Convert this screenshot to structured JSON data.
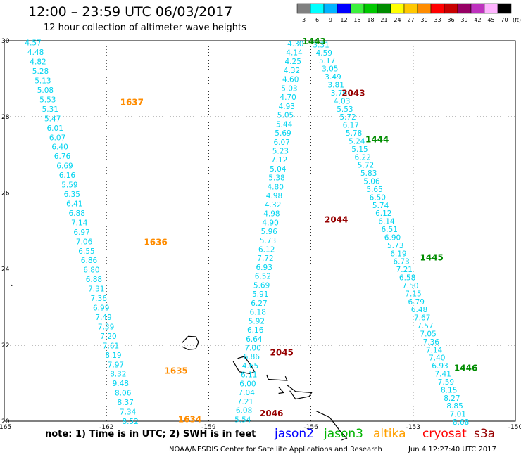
{
  "title": "12:00 – 23:59 UTC 06/03/2017",
  "subtitle": "12 hour collection of altimeter wave heights",
  "legend": {
    "bins": [
      "3",
      "6",
      "9",
      "12",
      "15",
      "18",
      "21",
      "24",
      "27",
      "30",
      "33",
      "36",
      "39",
      "42",
      "45",
      "70"
    ],
    "colors": [
      "#808080",
      "#00ffff",
      "#00b4ff",
      "#0000ff",
      "#3cf03c",
      "#00c800",
      "#008c00",
      "#ffff00",
      "#ffc800",
      "#ff8c00",
      "#ff0000",
      "#c80000",
      "#960064",
      "#be32be",
      "#ffb4ff",
      "#000000"
    ],
    "unit": "(ft)"
  },
  "axes": {
    "lon_ticks": [
      "-165",
      "-162",
      "-159",
      "-156",
      "-153",
      "-150"
    ],
    "lat_ticks": [
      "30",
      "28",
      "26",
      "24",
      "22",
      "20"
    ]
  },
  "chart_data": {
    "type": "scatter",
    "x_range": [
      -165,
      -150
    ],
    "y_range": [
      20,
      30
    ],
    "passes": [
      {
        "label": "1637",
        "lon": -161.6,
        "lat": 28.38,
        "color": "#ff8c00"
      },
      {
        "label": "1636",
        "lon": -160.9,
        "lat": 24.7,
        "color": "#ff8c00"
      },
      {
        "label": "1635",
        "lon": -160.3,
        "lat": 21.32,
        "color": "#ff8c00"
      },
      {
        "label": "1634",
        "lon": -159.9,
        "lat": 20.05,
        "color": "#ff8c00"
      },
      {
        "label": "1443",
        "lon": -156.25,
        "lat": 29.98,
        "color": "#008c00"
      },
      {
        "label": "2043",
        "lon": -155.1,
        "lat": 28.62,
        "color": "#960000"
      },
      {
        "label": "1444",
        "lon": -154.4,
        "lat": 27.4,
        "color": "#008c00"
      },
      {
        "label": "2044",
        "lon": -155.6,
        "lat": 25.3,
        "color": "#960000"
      },
      {
        "label": "1445",
        "lon": -152.8,
        "lat": 24.3,
        "color": "#008c00"
      },
      {
        "label": "2045",
        "lon": -157.2,
        "lat": 21.8,
        "color": "#960000"
      },
      {
        "label": "1446",
        "lon": -151.8,
        "lat": 21.4,
        "color": "#008c00"
      },
      {
        "label": "2046",
        "lon": -157.5,
        "lat": 20.2,
        "color": "#960000"
      }
    ],
    "tracks": [
      {
        "name": "1637-1634",
        "start": [
          -164.15,
          29.95
        ],
        "end": [
          -161.3,
          20.0
        ],
        "values": [
          "4.57",
          "4.48",
          "4.82",
          "5.28",
          "5.13",
          "5.08",
          "5.53",
          "5.31",
          "5.47",
          "6.01",
          "6.07",
          "6.40",
          "6.76",
          "6.69",
          "6.16",
          "5.59",
          "6.35",
          "6.41",
          "6.88",
          "7.14",
          "6.97",
          "7.06",
          "6.55",
          "6.86",
          "6.80",
          "6.88",
          "7.31",
          "7.36",
          "6.99",
          "7.49",
          "7.39",
          "7.20",
          "7.61",
          "8.19",
          "7.97",
          "8.32",
          "9.48",
          "8.06",
          "8.37",
          "7.34",
          "8.52"
        ]
      },
      {
        "name": "1443-1446",
        "start": [
          -155.7,
          29.9
        ],
        "end": [
          -151.6,
          19.98
        ],
        "values": [
          "3.31",
          "4.59",
          "5.17",
          "3.05",
          "3.49",
          "3.81",
          "3.76",
          "4.03",
          "5.53",
          "5.72",
          "6.17",
          "5.78",
          "5.24",
          "5.15",
          "6.22",
          "5.72",
          "5.83",
          "5.06",
          "5.65",
          "6.50",
          "5.74",
          "6.12",
          "6.14",
          "6.51",
          "6.90",
          "5.73",
          "6.19",
          "6.73",
          "7.21",
          "6.58",
          "7.50",
          "7.15",
          "6.79",
          "6.48",
          "7.67",
          "7.57",
          "7.05",
          "7.36",
          "7.14",
          "7.40",
          "6.93",
          "7.41",
          "7.59",
          "8.15",
          "8.27",
          "8.85",
          "7.01",
          "8.68"
        ]
      },
      {
        "name": "2043-2046",
        "start": [
          -156.45,
          29.93
        ],
        "end": [
          -158.0,
          20.05
        ],
        "values": [
          "4.30",
          "4.14",
          "4.25",
          "4.32",
          "4.60",
          "5.03",
          "4.70",
          "4.93",
          "5.05",
          "5.44",
          "5.69",
          "6.07",
          "5.23",
          "7.12",
          "5.04",
          "5.38",
          "4.80",
          "4.98",
          "4.32",
          "4.98",
          "4.90",
          "5.96",
          "5.73",
          "6.12",
          "7.72",
          "6.93",
          "6.52",
          "5.69",
          "5.91",
          "6.27",
          "6.18",
          "5.92",
          "6.16",
          "6.64",
          "7.00",
          "6.86",
          "4.65",
          "6.11",
          "6.00",
          "7.04",
          "7.21",
          "6.08",
          "5.54"
        ]
      }
    ]
  },
  "note_text": "note: 1) Time is in UTC; 2) SWH is in feet",
  "satellites": [
    {
      "name": "jason2",
      "color": "#0000ff"
    },
    {
      "name": "jason3",
      "color": "#00b400"
    },
    {
      "name": "altika",
      "color": "#ffa000"
    },
    {
      "name": "cryosat",
      "color": "#ff0000"
    },
    {
      "name": "s3a",
      "color": "#960000"
    }
  ],
  "credit": "NOAA/NESDIS Center for Satellite Applications and Research",
  "timestamp": "Jun  4 12:27:40 UTC 2017"
}
